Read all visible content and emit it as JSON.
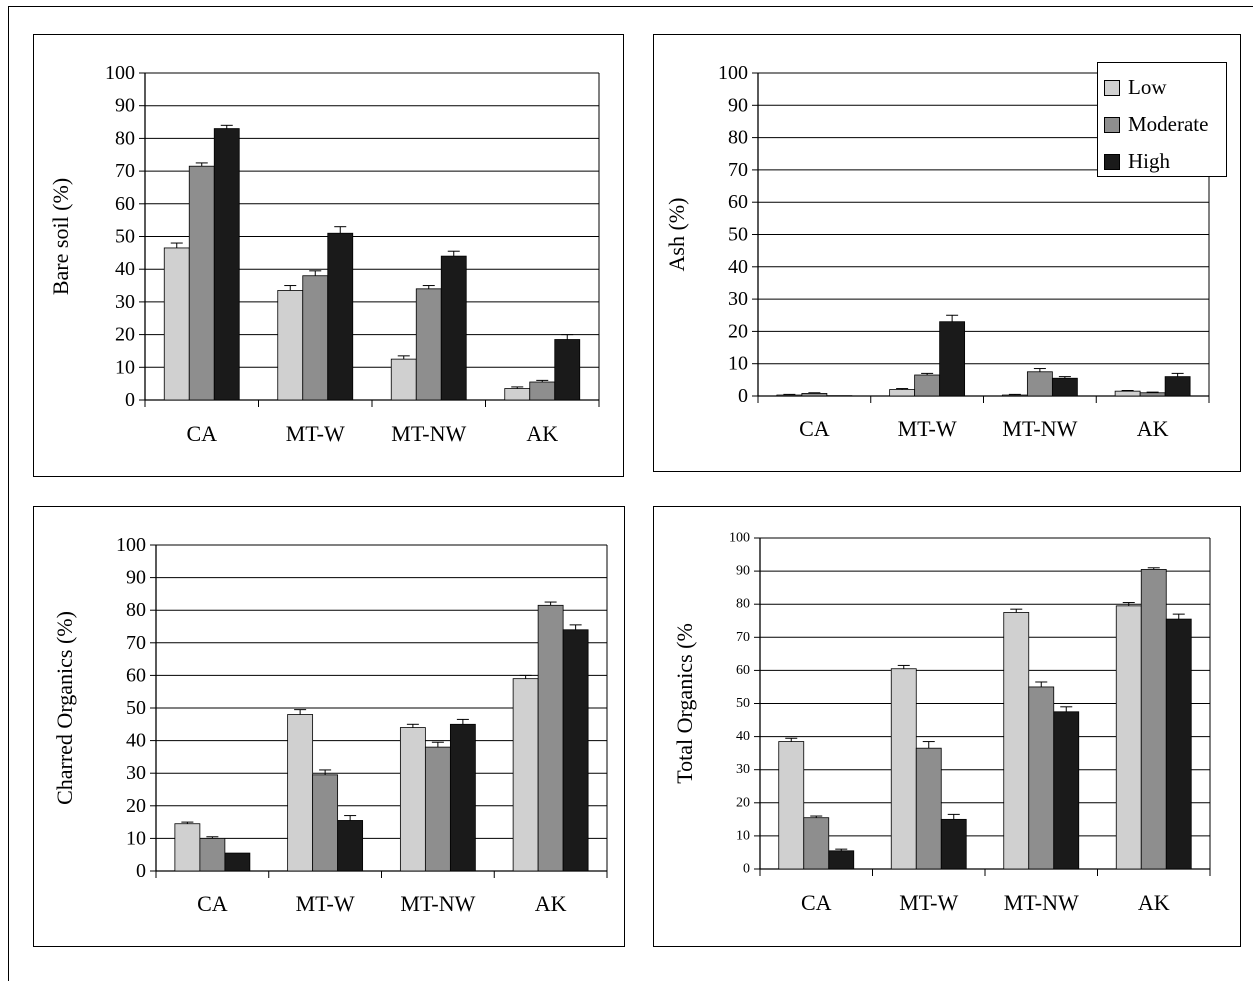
{
  "colors": {
    "Low": "#d0d0d0",
    "Moderate": "#8e8e8e",
    "High": "#1a1a1a"
  },
  "legend": {
    "entries": [
      "Low",
      "Moderate",
      "High"
    ]
  },
  "chart_data": [
    {
      "id": "bare",
      "type": "bar",
      "ylabel": "Bare soil (%)",
      "ylim": [
        0,
        100
      ],
      "yticks": [
        0,
        10,
        20,
        30,
        40,
        50,
        60,
        70,
        80,
        90,
        100
      ],
      "categories": [
        "CA",
        "MT-W",
        "MT-NW",
        "AK"
      ],
      "series": [
        {
          "name": "Low",
          "values": [
            46.5,
            33.5,
            12.5,
            3.5
          ],
          "errors": [
            1.5,
            1.5,
            1.0,
            0.5
          ]
        },
        {
          "name": "Moderate",
          "values": [
            71.5,
            38.0,
            34.0,
            5.5
          ],
          "errors": [
            1.0,
            1.5,
            1.0,
            0.5
          ]
        },
        {
          "name": "High",
          "values": [
            83.0,
            51.0,
            44.0,
            18.5
          ],
          "errors": [
            1.0,
            2.0,
            1.5,
            1.5
          ]
        }
      ],
      "grid": true
    },
    {
      "id": "ash",
      "type": "bar",
      "ylabel": "Ash (%)",
      "ylim": [
        0,
        100
      ],
      "yticks": [
        0,
        10,
        20,
        30,
        40,
        50,
        60,
        70,
        80,
        90,
        100
      ],
      "categories": [
        "CA",
        "MT-W",
        "MT-NW",
        "AK"
      ],
      "series": [
        {
          "name": "Low",
          "values": [
            0.3,
            2.0,
            0.3,
            1.5
          ],
          "errors": [
            0.2,
            0.3,
            0.2,
            0.2
          ]
        },
        {
          "name": "Moderate",
          "values": [
            0.8,
            6.5,
            7.5,
            1.0
          ],
          "errors": [
            0.2,
            0.5,
            1.0,
            0.2
          ]
        },
        {
          "name": "High",
          "values": [
            0.1,
            23.0,
            5.5,
            6.0
          ],
          "errors": [
            0.0,
            2.0,
            0.5,
            1.0
          ]
        }
      ],
      "legend": "top-right",
      "grid": true
    },
    {
      "id": "charred",
      "type": "bar",
      "ylabel": "Charred Organics (%)",
      "ylim": [
        0,
        100
      ],
      "yticks": [
        0,
        10,
        20,
        30,
        40,
        50,
        60,
        70,
        80,
        90,
        100
      ],
      "categories": [
        "CA",
        "MT-W",
        "MT-NW",
        "AK"
      ],
      "series": [
        {
          "name": "Low",
          "values": [
            14.5,
            48.0,
            44.0,
            59.0
          ],
          "errors": [
            0.5,
            1.5,
            1.0,
            1.0
          ]
        },
        {
          "name": "Moderate",
          "values": [
            10.0,
            29.5,
            38.0,
            81.5
          ],
          "errors": [
            0.5,
            1.5,
            1.5,
            1.0
          ]
        },
        {
          "name": "High",
          "values": [
            5.5,
            15.5,
            45.0,
            74.0
          ],
          "errors": [
            0.0,
            1.5,
            1.5,
            1.5
          ]
        }
      ],
      "grid": true
    },
    {
      "id": "total",
      "type": "bar",
      "ylabel": "Total Organics (%",
      "ylim": [
        0,
        100
      ],
      "yticks": [
        0,
        10,
        20,
        30,
        40,
        50,
        60,
        70,
        80,
        90,
        100
      ],
      "categories": [
        "CA",
        "MT-W",
        "MT-NW",
        "AK"
      ],
      "series": [
        {
          "name": "Low",
          "values": [
            38.5,
            60.5,
            77.5,
            79.5
          ],
          "errors": [
            1.0,
            1.0,
            1.0,
            1.0
          ]
        },
        {
          "name": "Moderate",
          "values": [
            15.5,
            36.5,
            55.0,
            90.5
          ],
          "errors": [
            0.5,
            2.0,
            1.5,
            0.5
          ]
        },
        {
          "name": "High",
          "values": [
            5.5,
            15.0,
            47.5,
            75.5
          ],
          "errors": [
            0.5,
            1.5,
            1.5,
            1.5
          ]
        }
      ],
      "grid": true
    }
  ]
}
